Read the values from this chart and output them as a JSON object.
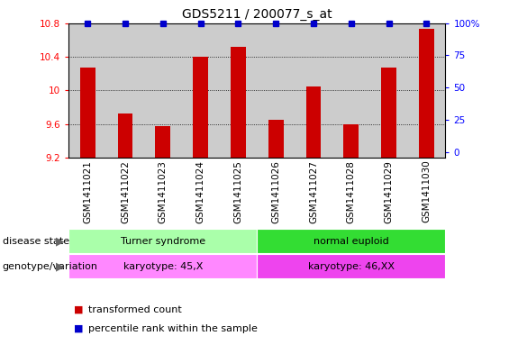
{
  "title": "GDS5211 / 200077_s_at",
  "samples": [
    "GSM1411021",
    "GSM1411022",
    "GSM1411023",
    "GSM1411024",
    "GSM1411025",
    "GSM1411026",
    "GSM1411027",
    "GSM1411028",
    "GSM1411029",
    "GSM1411030"
  ],
  "transformed_count": [
    10.27,
    9.72,
    9.57,
    10.4,
    10.52,
    9.65,
    10.05,
    9.6,
    10.27,
    10.73
  ],
  "percentile_rank": [
    100,
    100,
    100,
    100,
    100,
    100,
    100,
    100,
    100,
    100
  ],
  "ylim": [
    9.2,
    10.8
  ],
  "yticks": [
    9.2,
    9.6,
    10.0,
    10.4,
    10.8
  ],
  "right_yticks": [
    0,
    25,
    50,
    75,
    100
  ],
  "bar_color": "#cc0000",
  "percentile_color": "#0000cc",
  "bg_color": "#ffffff",
  "col_bg_light": "#cccccc",
  "col_bg_dark": "#bbbbbb",
  "disease_state_groups": [
    {
      "label": "Turner syndrome",
      "start": 0,
      "end": 4,
      "color": "#aaffaa"
    },
    {
      "label": "normal euploid",
      "start": 5,
      "end": 9,
      "color": "#33dd33"
    }
  ],
  "genotype_groups": [
    {
      "label": "karyotype: 45,X",
      "start": 0,
      "end": 4,
      "color": "#ff88ff"
    },
    {
      "label": "karyotype: 46,XX",
      "start": 5,
      "end": 9,
      "color": "#ee44ee"
    }
  ],
  "title_fontsize": 10,
  "tick_fontsize": 7.5,
  "annot_fontsize": 8,
  "legend_fontsize": 8,
  "row_label_fontsize": 8
}
